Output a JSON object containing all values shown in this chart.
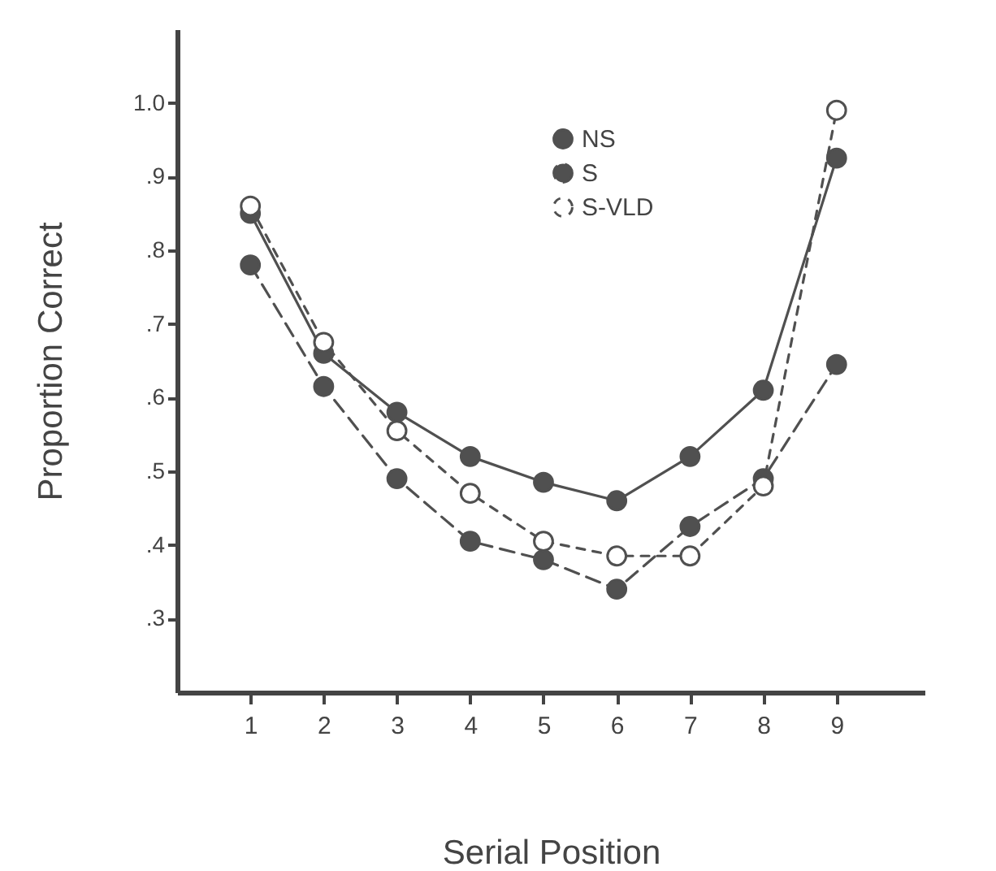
{
  "chart_data": {
    "type": "line",
    "xlabel": "Serial Position",
    "ylabel": "Proportion Correct",
    "x": [
      1,
      2,
      3,
      4,
      5,
      6,
      7,
      8,
      9
    ],
    "series": [
      {
        "name": "NS",
        "color": "#505050",
        "line_style": "solid",
        "marker": "circle",
        "values": [
          0.85,
          0.66,
          0.58,
          0.52,
          0.485,
          0.46,
          0.52,
          0.61,
          0.925
        ]
      },
      {
        "name": "S",
        "color": "#505050",
        "line_style": "dashed",
        "marker": "circle",
        "values": [
          0.78,
          0.615,
          0.49,
          0.405,
          0.38,
          0.34,
          0.425,
          0.49,
          0.645
        ]
      },
      {
        "name": "S-VLD",
        "color": "#505050",
        "line_style": "dotted",
        "marker": "circle-open",
        "values": [
          0.86,
          0.675,
          0.555,
          0.47,
          0.405,
          0.385,
          0.385,
          0.48,
          0.99
        ]
      }
    ],
    "xlim": [
      0,
      10.2
    ],
    "xticks": [
      1,
      2,
      3,
      4,
      5,
      6,
      7,
      8,
      9
    ],
    "ylim": [
      0.2,
      1.1
    ],
    "yticks": [
      {
        "value": 0.3,
        "label": ".3"
      },
      {
        "value": 0.4,
        "label": ".4"
      },
      {
        "value": 0.5,
        "label": ".5"
      },
      {
        "value": 0.6,
        "label": ".6"
      },
      {
        "value": 0.7,
        "label": ".7"
      },
      {
        "value": 0.8,
        "label": ".8"
      },
      {
        "value": 0.9,
        "label": ".9"
      },
      {
        "value": 1.0,
        "label": "1.0"
      }
    ],
    "grid": false,
    "legend": "top right"
  }
}
